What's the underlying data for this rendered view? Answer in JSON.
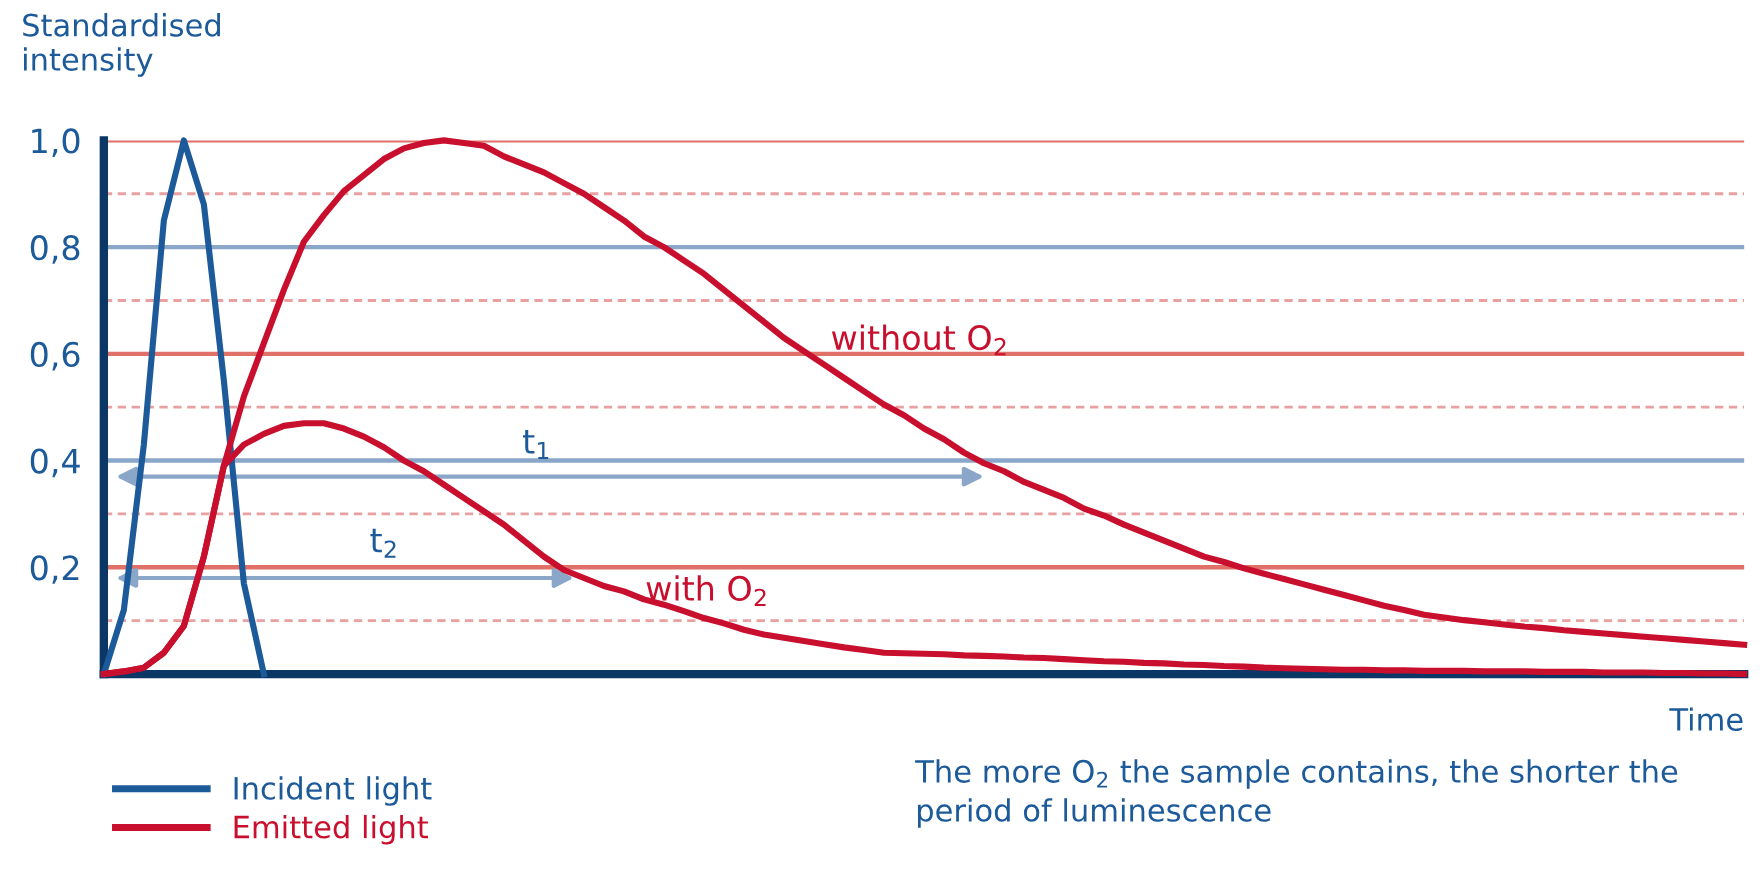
{
  "chart_data": {
    "type": "line",
    "ylabel": "Standardised\nintensity",
    "xlabel": "Time",
    "categories": [
      null,
      null,
      null,
      null,
      null,
      null,
      null,
      null,
      null,
      null,
      null,
      null,
      null,
      null,
      null,
      null,
      null,
      null,
      null,
      null,
      null,
      null,
      null,
      null,
      null,
      null,
      null,
      null,
      null,
      null,
      null,
      null,
      null,
      null,
      null,
      null,
      null,
      null,
      null,
      null,
      null,
      null,
      null,
      null,
      null,
      null,
      null,
      null,
      null,
      null,
      null,
      null,
      null,
      null,
      null,
      null,
      null,
      null,
      null,
      null,
      null,
      null,
      null,
      null,
      null,
      null,
      null,
      null,
      null,
      null,
      null,
      null,
      null,
      null,
      null,
      null,
      null,
      null,
      null,
      null,
      null,
      null,
      null
    ],
    "ylim": [
      0,
      1.0
    ],
    "yticks": [
      {
        "value": 0.1,
        "label": null
      },
      {
        "value": 0.2,
        "label": "0,2"
      },
      {
        "value": 0.3,
        "label": null
      },
      {
        "value": 0.4,
        "label": "0,4"
      },
      {
        "value": 0.5,
        "label": null
      },
      {
        "value": 0.6,
        "label": "0,6"
      },
      {
        "value": 0.7,
        "label": null
      },
      {
        "value": 0.8,
        "label": "0,8"
      },
      {
        "value": 0.9,
        "label": null
      },
      {
        "value": 1.0,
        "label": "1,0"
      }
    ],
    "tick_labels": "y",
    "grid": "y",
    "legend": "bottom left",
    "marker": "none",
    "line_style": "solid",
    "series": [
      {
        "name": "Incident light",
        "color": "#1d5a9a",
        "values": [
          0,
          0.12,
          0.43,
          0.85,
          1.0,
          0.88,
          0.55,
          0.17,
          0,
          null,
          null,
          null,
          null,
          null,
          null,
          null,
          null,
          null,
          null,
          null,
          null,
          null,
          null,
          null,
          null,
          null,
          null,
          null,
          null,
          null,
          null,
          null,
          null,
          null,
          null,
          null,
          null,
          null,
          null,
          null,
          null,
          null,
          null,
          null,
          null,
          null,
          null,
          null,
          null,
          null,
          null,
          null,
          null,
          null,
          null,
          null,
          null,
          null,
          null,
          null,
          null,
          null,
          null,
          null,
          null,
          null,
          null,
          null,
          null,
          null,
          null,
          null,
          null,
          null,
          null,
          null,
          null,
          null,
          null,
          null,
          null,
          null,
          null
        ]
      },
      {
        "name": "Emitted light",
        "color": "#c8102e",
        "values": [
          0,
          0.005,
          0.012,
          0.04,
          0.09,
          0.22,
          0.39,
          0.52,
          0.62,
          0.72,
          0.81,
          0.86,
          0.905,
          0.935,
          0.965,
          0.985,
          0.995,
          1.0,
          0.995,
          0.99,
          0.97,
          0.955,
          0.94,
          0.92,
          0.9,
          0.875,
          0.85,
          0.82,
          0.8,
          0.775,
          0.75,
          0.72,
          0.69,
          0.66,
          0.63,
          0.605,
          0.58,
          0.555,
          0.53,
          0.505,
          0.485,
          0.46,
          0.44,
          0.415,
          0.395,
          0.38,
          0.36,
          0.345,
          0.33,
          0.31,
          0.297,
          0.28,
          0.265,
          0.25,
          0.235,
          0.22,
          0.21,
          0.198,
          0.188,
          0.178,
          0.168,
          0.158,
          0.148,
          0.138,
          0.128,
          0.12,
          0.111,
          0.106,
          0.101,
          0.097,
          0.093,
          0.089,
          0.086,
          0.082,
          0.079,
          0.076,
          0.073,
          0.07,
          0.067,
          0.064,
          0.061,
          0.058,
          0.055
        ]
      },
      {
        "color": "#c8102e",
        "values": [
          0,
          0.005,
          0.012,
          0.04,
          0.09,
          0.22,
          0.39,
          0.43,
          0.45,
          0.465,
          0.47,
          0.47,
          0.46,
          0.445,
          0.425,
          0.4,
          0.38,
          0.355,
          0.33,
          0.305,
          0.28,
          0.25,
          0.22,
          0.195,
          0.18,
          0.165,
          0.155,
          0.14,
          0.13,
          0.118,
          0.105,
          0.095,
          0.083,
          0.074,
          0.068,
          0.062,
          0.056,
          0.05,
          0.045,
          0.04,
          0.039,
          0.038,
          0.037,
          0.035,
          0.034,
          0.033,
          0.031,
          0.03,
          0.028,
          0.026,
          0.024,
          0.023,
          0.021,
          0.02,
          0.018,
          0.017,
          0.015,
          0.014,
          0.012,
          0.011,
          0.01,
          0.009,
          0.008,
          0.008,
          0.007,
          0.007,
          0.006,
          0.006,
          0.006,
          0.005,
          0.005,
          0.005,
          0.004,
          0.004,
          0.004,
          0.003,
          0.003,
          0.003,
          0.002,
          0.002,
          0.001,
          0.001,
          0
        ]
      }
    ],
    "annotations": [
      "t$_{1}$",
      "t$_{2}$",
      "without O$_{2}$",
      "with O$_{2}$",
      "The more O$_{2}$ the sample contains, the shorter the\nperiod of luminescence"
    ]
  }
}
